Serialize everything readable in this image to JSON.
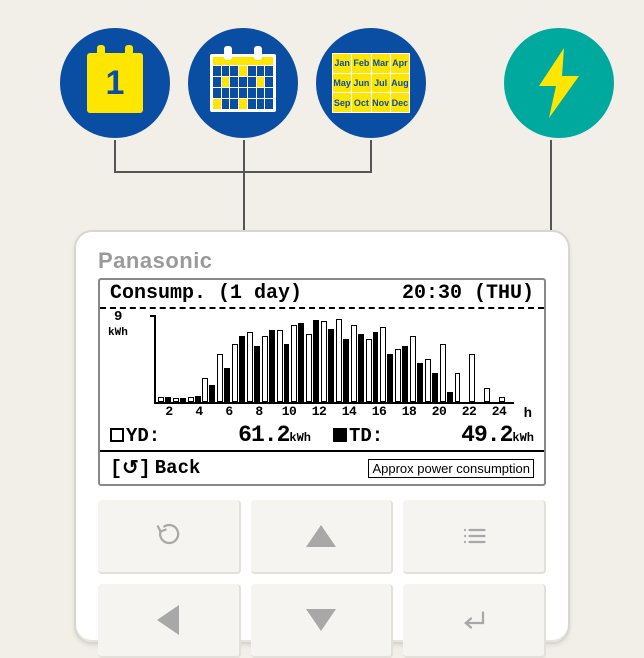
{
  "icons": {
    "day_number": "1",
    "months": [
      "Jan",
      "Feb",
      "Mar",
      "Apr",
      "May",
      "Jun",
      "Jul",
      "Aug",
      "Sep",
      "Oct",
      "Nov",
      "Dec"
    ]
  },
  "colors": {
    "icon_blue": "#0a4ea3",
    "icon_yellow": "#ffe600",
    "icon_teal": "#00a99d",
    "panel_bg": "#ffffff",
    "page_bg": "#f1efe8",
    "button_fg": "#a8a8a8"
  },
  "device": {
    "brand": "Panasonic"
  },
  "lcd": {
    "title": "Consump. (1 day)",
    "clock": "20:30 (THU)",
    "y_tick_label": "9",
    "y_unit": "kWh",
    "x_unit": "h",
    "yd_label": "YD:",
    "td_label": "TD:",
    "yd_value": "61.2",
    "td_value": "49.2",
    "value_unit": "kWh",
    "back_label": "Back",
    "approx_label": "Approx power consumption"
  },
  "chart": {
    "type": "bar",
    "y_max": 9,
    "x_ticks": [
      "2",
      "4",
      "6",
      "8",
      "10",
      "12",
      "14",
      "16",
      "18",
      "20",
      "22",
      "24"
    ],
    "pairs": [
      {
        "yd": 0.5,
        "td": 0.5
      },
      {
        "yd": 0.4,
        "td": 0.4
      },
      {
        "yd": 0.5,
        "td": 0.6
      },
      {
        "yd": 2.5,
        "td": 1.8
      },
      {
        "yd": 5.0,
        "td": 3.5
      },
      {
        "yd": 6.0,
        "td": 6.8
      },
      {
        "yd": 7.2,
        "td": 5.8
      },
      {
        "yd": 6.8,
        "td": 7.5
      },
      {
        "yd": 7.5,
        "td": 6.0
      },
      {
        "yd": 8.0,
        "td": 8.2
      },
      {
        "yd": 7.0,
        "td": 8.5
      },
      {
        "yd": 8.4,
        "td": 7.6
      },
      {
        "yd": 8.6,
        "td": 6.5
      },
      {
        "yd": 8.0,
        "td": 7.0
      },
      {
        "yd": 6.5,
        "td": 7.2
      },
      {
        "yd": 7.8,
        "td": 5.0
      },
      {
        "yd": 5.5,
        "td": 5.8
      },
      {
        "yd": 6.8,
        "td": 4.0
      },
      {
        "yd": 4.5,
        "td": 3.0
      },
      {
        "yd": 6.0,
        "td": 1.0
      },
      {
        "yd": 3.0,
        "td": 0
      },
      {
        "yd": 5.0,
        "td": 0
      },
      {
        "yd": 1.5,
        "td": 0
      },
      {
        "yd": 0.5,
        "td": 0
      }
    ],
    "bar_colors": {
      "yd": "#ffffff",
      "td": "#000000",
      "border": "#000000"
    }
  }
}
